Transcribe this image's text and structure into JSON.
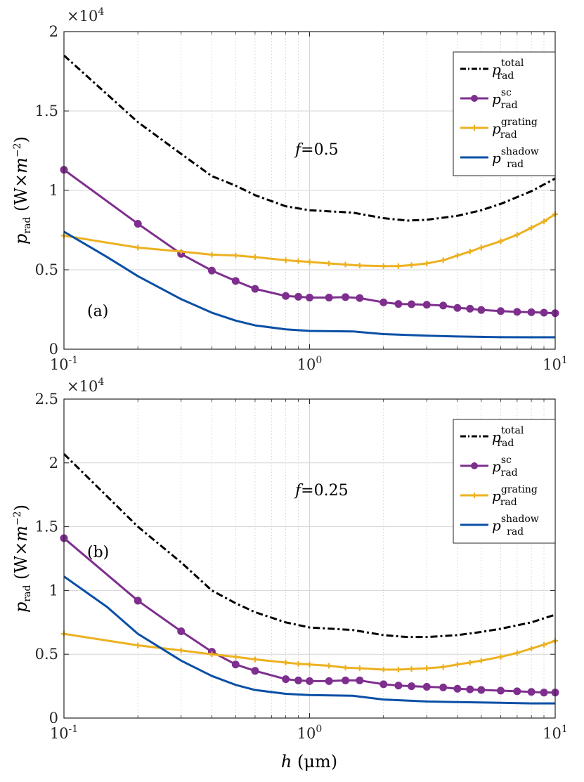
{
  "chart_data": [
    {
      "type": "line",
      "panel_label": "(a)",
      "annotation": "f=0.5",
      "multiplier": {
        "base": "×10",
        "exp": "4"
      },
      "xlabel": "h (μm)",
      "ylabel": "p_rad (W×m^-2)",
      "xscale": "log",
      "xlim": [
        0.1,
        10
      ],
      "ylim": [
        0,
        20000
      ],
      "yticks": [
        0,
        5000,
        10000,
        15000,
        20000
      ],
      "ytick_labels": [
        "0",
        "0.5",
        "1",
        "1.5",
        "2"
      ],
      "xticks": [
        0.1,
        1,
        10
      ],
      "xtick_labels": [
        {
          "base": "10",
          "exp": "-1"
        },
        {
          "base": "10",
          "exp": "0"
        },
        {
          "base": "10",
          "exp": "1"
        }
      ],
      "grid": true,
      "legend_position": "top-right",
      "series": [
        {
          "name": "p_rad^total",
          "color": "#000000",
          "dash": "dashdot",
          "marker": "none",
          "x": [
            0.1,
            0.2,
            0.3,
            0.4,
            0.5,
            0.6,
            0.8,
            1.0,
            1.5,
            2.0,
            2.5,
            3.0,
            4.0,
            5.0,
            6.0,
            8.0,
            10.0
          ],
          "y": [
            18500,
            14300,
            12300,
            10900,
            10300,
            9700,
            9000,
            8750,
            8600,
            8250,
            8100,
            8150,
            8400,
            8750,
            9150,
            9950,
            10750
          ]
        },
        {
          "name": "p_rad^sc",
          "color": "#7E2F8E",
          "dash": "solid",
          "marker": "circle",
          "x": [
            0.1,
            0.2,
            0.3,
            0.4,
            0.5,
            0.6,
            0.8,
            0.9,
            1.0,
            1.2,
            1.4,
            1.6,
            2.0,
            2.3,
            2.6,
            3.0,
            3.5,
            4.0,
            4.5,
            5.0,
            6.0,
            7.0,
            8.0,
            9.0,
            10.0
          ],
          "y": [
            11300,
            7900,
            6000,
            4950,
            4300,
            3800,
            3350,
            3300,
            3250,
            3250,
            3280,
            3220,
            2950,
            2850,
            2830,
            2800,
            2750,
            2600,
            2550,
            2470,
            2400,
            2350,
            2330,
            2300,
            2270
          ]
        },
        {
          "name": "p_rad^grating",
          "color": "#EDB120",
          "dash": "solid",
          "marker": "plus",
          "x": [
            0.1,
            0.2,
            0.3,
            0.4,
            0.5,
            0.6,
            0.8,
            0.9,
            1.0,
            1.2,
            1.4,
            1.6,
            2.0,
            2.3,
            2.6,
            3.0,
            3.5,
            4.0,
            4.5,
            5.0,
            6.0,
            7.0,
            8.0,
            9.0,
            10.0
          ],
          "y": [
            7150,
            6400,
            6150,
            5950,
            5900,
            5800,
            5600,
            5550,
            5500,
            5400,
            5330,
            5270,
            5230,
            5230,
            5300,
            5400,
            5600,
            5900,
            6150,
            6400,
            6800,
            7200,
            7650,
            8050,
            8500
          ]
        },
        {
          "name": "p_rad^shadow",
          "color": "#0A4FA6",
          "dash": "solid",
          "marker": "none",
          "x": [
            0.1,
            0.15,
            0.2,
            0.3,
            0.4,
            0.5,
            0.6,
            0.8,
            1.0,
            1.5,
            2.0,
            3.0,
            4.0,
            6.0,
            8.0,
            10.0
          ],
          "y": [
            7400,
            5800,
            4600,
            3150,
            2300,
            1800,
            1500,
            1250,
            1150,
            1120,
            950,
            850,
            800,
            760,
            750,
            750
          ]
        }
      ]
    },
    {
      "type": "line",
      "panel_label": "(b)",
      "annotation": "f=0.25",
      "multiplier": {
        "base": "×10",
        "exp": "4"
      },
      "xlabel": "h (μm)",
      "ylabel": "p_rad (W×m^-2)",
      "xscale": "log",
      "xlim": [
        0.1,
        10
      ],
      "ylim": [
        0,
        25000
      ],
      "yticks": [
        0,
        5000,
        10000,
        15000,
        20000,
        25000
      ],
      "ytick_labels": [
        "0",
        "0.5",
        "1",
        "1.5",
        "2",
        "2.5"
      ],
      "xticks": [
        0.1,
        1,
        10
      ],
      "xtick_labels": [
        {
          "base": "10",
          "exp": "-1"
        },
        {
          "base": "10",
          "exp": "0"
        },
        {
          "base": "10",
          "exp": "1"
        }
      ],
      "grid": true,
      "legend_position": "top-right",
      "series": [
        {
          "name": "p_rad^total",
          "color": "#000000",
          "dash": "dashdot",
          "marker": "none",
          "x": [
            0.1,
            0.2,
            0.3,
            0.4,
            0.5,
            0.6,
            0.8,
            1.0,
            1.5,
            2.0,
            2.5,
            3.0,
            4.0,
            5.0,
            6.0,
            8.0,
            10.0
          ],
          "y": [
            20700,
            15000,
            12200,
            10000,
            9000,
            8300,
            7500,
            7100,
            6900,
            6500,
            6350,
            6350,
            6500,
            6750,
            7000,
            7500,
            8100
          ]
        },
        {
          "name": "p_rad^sc",
          "color": "#7E2F8E",
          "dash": "solid",
          "marker": "circle",
          "x": [
            0.1,
            0.2,
            0.3,
            0.4,
            0.5,
            0.6,
            0.8,
            0.9,
            1.0,
            1.2,
            1.4,
            1.6,
            2.0,
            2.3,
            2.6,
            3.0,
            3.5,
            4.0,
            4.5,
            5.0,
            6.0,
            7.0,
            8.0,
            9.0,
            10.0
          ],
          "y": [
            14100,
            9200,
            6800,
            5200,
            4200,
            3700,
            3050,
            2950,
            2900,
            2900,
            2950,
            2950,
            2650,
            2550,
            2500,
            2450,
            2400,
            2300,
            2250,
            2200,
            2150,
            2100,
            2050,
            2000,
            2000
          ]
        },
        {
          "name": "p_rad^grating",
          "color": "#EDB120",
          "dash": "solid",
          "marker": "plus",
          "x": [
            0.1,
            0.2,
            0.3,
            0.4,
            0.5,
            0.6,
            0.8,
            0.9,
            1.0,
            1.2,
            1.4,
            1.6,
            2.0,
            2.3,
            2.6,
            3.0,
            3.5,
            4.0,
            4.5,
            5.0,
            6.0,
            7.0,
            8.0,
            9.0,
            10.0
          ],
          "y": [
            6600,
            5700,
            5300,
            5000,
            4800,
            4600,
            4350,
            4250,
            4200,
            4100,
            3950,
            3900,
            3800,
            3800,
            3850,
            3900,
            4000,
            4200,
            4350,
            4500,
            4800,
            5100,
            5450,
            5750,
            6050
          ]
        },
        {
          "name": "p_rad^shadow",
          "color": "#0A4FA6",
          "dash": "solid",
          "marker": "none",
          "x": [
            0.1,
            0.15,
            0.2,
            0.3,
            0.4,
            0.5,
            0.6,
            0.8,
            1.0,
            1.5,
            2.0,
            3.0,
            4.0,
            6.0,
            8.0,
            10.0
          ],
          "y": [
            11100,
            8700,
            6600,
            4500,
            3300,
            2600,
            2200,
            1900,
            1800,
            1750,
            1450,
            1300,
            1250,
            1200,
            1150,
            1150
          ]
        }
      ]
    }
  ]
}
